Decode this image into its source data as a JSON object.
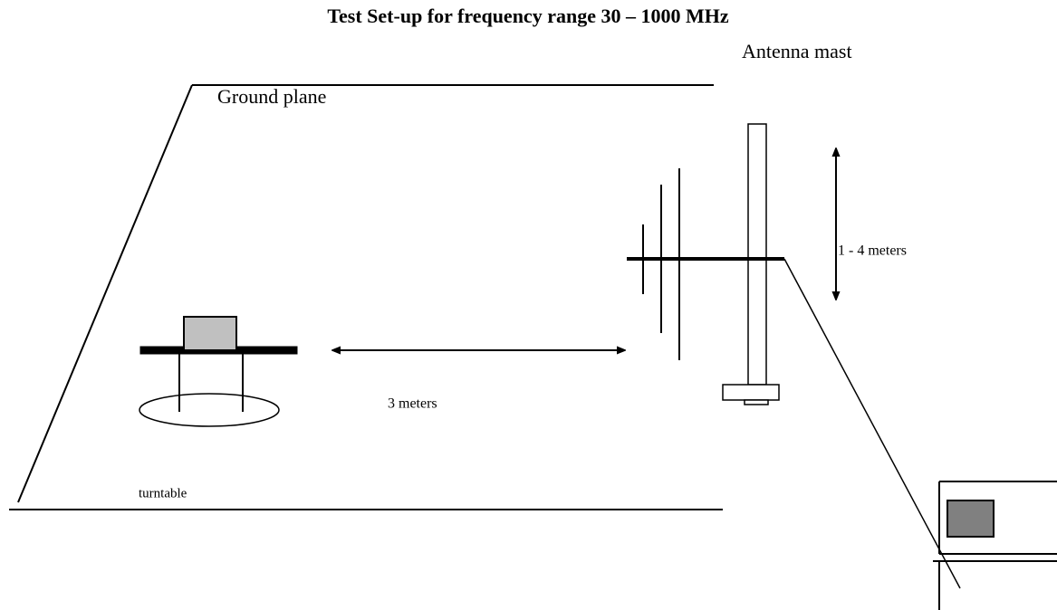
{
  "title": "Test Set-up for frequency range 30 – 1000 MHz",
  "labels": {
    "antenna_mast": "Antenna mast",
    "ground_plane": "Ground plane",
    "height_range": "1 - 4 meters",
    "distance": "3 meters",
    "turntable": "turntable"
  }
}
